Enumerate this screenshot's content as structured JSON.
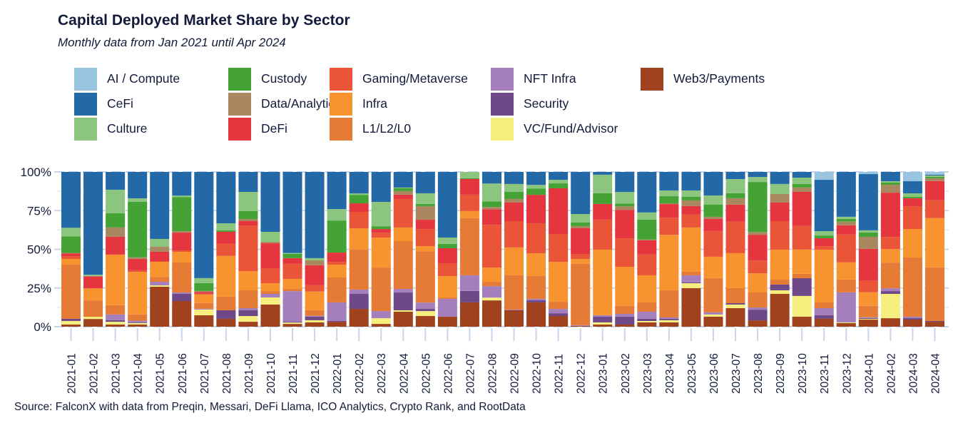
{
  "chart_data": {
    "type": "bar",
    "stacked": true,
    "normalized": true,
    "title": "Capital Deployed Market Share by Sector",
    "subtitle": "Monthly data from Jan 2021 until Apr 2024",
    "xlabel": "",
    "ylabel": "",
    "ylim": [
      0,
      100
    ],
    "yticks": [
      "0%",
      "25%",
      "50%",
      "75%",
      "100%"
    ],
    "ytick_values": [
      0,
      25,
      50,
      75,
      100
    ],
    "grid": true,
    "legend_position": "top",
    "source": "Source: FalconX with data from Preqin, Messari, DeFi Llama, ICO Analytics, Crypto Rank, and RootData",
    "categories": [
      "2021-01",
      "2021-02",
      "2021-03",
      "2021-04",
      "2021-05",
      "2021-06",
      "2021-07",
      "2021-08",
      "2021-09",
      "2021-10",
      "2021-11",
      "2021-12",
      "2022-01",
      "2022-02",
      "2022-03",
      "2022-04",
      "2022-05",
      "2022-06",
      "2022-07",
      "2022-08",
      "2022-09",
      "2022-10",
      "2022-11",
      "2022-12",
      "2023-01",
      "2023-02",
      "2023-03",
      "2023-04",
      "2023-05",
      "2023-06",
      "2023-07",
      "2023-08",
      "2023-09",
      "2023-10",
      "2023-11",
      "2023-12",
      "2024-01",
      "2024-02",
      "2024-03",
      "2024-04"
    ],
    "legend": [
      {
        "name": "AI / Compute",
        "color": "#9ac5e0"
      },
      {
        "name": "CeFi",
        "color": "#2369a8"
      },
      {
        "name": "Culture",
        "color": "#8bc57e"
      },
      {
        "name": "Custody",
        "color": "#45a336"
      },
      {
        "name": "Data/Analytics",
        "color": "#a98860"
      },
      {
        "name": "DeFi",
        "color": "#e5353e"
      },
      {
        "name": "Gaming/Metaverse",
        "color": "#e95536"
      },
      {
        "name": "Infra",
        "color": "#f89430"
      },
      {
        "name": "L1/L2/L0",
        "color": "#e67b35"
      },
      {
        "name": "NFT Infra",
        "color": "#a47fbb"
      },
      {
        "name": "Security",
        "color": "#6e4887"
      },
      {
        "name": "VC/Fund/Advisor",
        "color": "#f6ef7e"
      },
      {
        "name": "Web3/Payments",
        "color": "#a0421e"
      }
    ],
    "series": [
      {
        "name": "Web3/Payments",
        "color": "#a0421e",
        "values": [
          1.4,
          5.0,
          1.4,
          1.4,
          25.8,
          16.6,
          7.4,
          5.1,
          3.2,
          14.3,
          1.8,
          2.8,
          3.2,
          11.5,
          1.8,
          9.7,
          6.9,
          6.5,
          15.7,
          17.0,
          10.6,
          15.7,
          6.9,
          0.5,
          1.4,
          1.4,
          2.8,
          2.8,
          24.9,
          6.5,
          12.0,
          4.1,
          21.2,
          6.5,
          5.1,
          2.3,
          4.6,
          5.5,
          4.6,
          3.2
        ]
      },
      {
        "name": "VC/Fund/Advisor",
        "color": "#f6ef7e",
        "values": [
          2.3,
          1.4,
          1.8,
          1.0,
          0.9,
          0,
          3.7,
          0,
          3.7,
          4.6,
          0.9,
          1.4,
          0,
          0,
          3.7,
          0.9,
          3.2,
          0,
          0,
          1.8,
          0,
          0,
          0,
          0,
          1.4,
          0,
          0.9,
          1.4,
          3.2,
          1.4,
          2.3,
          0,
          2.3,
          13.4,
          0,
          0.5,
          0.5,
          15.7,
          0,
          0
        ]
      },
      {
        "name": "Security",
        "color": "#6e4887",
        "values": [
          1.4,
          0,
          1.0,
          0.5,
          0,
          4.6,
          0,
          5.5,
          3.7,
          0,
          0.5,
          2.3,
          0.5,
          9.7,
          0,
          11.5,
          1.4,
          0,
          7.4,
          0,
          0,
          1.4,
          1.8,
          0,
          3.7,
          5.1,
          1.4,
          0.9,
          0.5,
          0,
          0.9,
          6.9,
          3.7,
          11.5,
          2.3,
          0,
          0.5,
          1.8,
          0.9,
          0.5
        ]
      },
      {
        "name": "NFT Infra",
        "color": "#a47fbb",
        "values": [
          0,
          0,
          3.7,
          1.0,
          2.3,
          0.9,
          0.5,
          0,
          1.4,
          2.3,
          19.8,
          0.5,
          12.0,
          2.8,
          4.6,
          2.3,
          4.1,
          11.5,
          10.1,
          7.4,
          0.5,
          0.9,
          2.8,
          0.5,
          0.9,
          1.8,
          4.6,
          0.9,
          4.6,
          1.4,
          0,
          1.4,
          0,
          0,
          4.6,
          19.4,
          0.5,
          1.8,
          0.9,
          0
        ]
      },
      {
        "name": "L1/L2/L0",
        "color": "#e67b35",
        "values": [
          35.0,
          10.6,
          6.0,
          4.1,
          3.2,
          19.4,
          3.7,
          8.8,
          11.5,
          1.8,
          1.4,
          3.7,
          16.1,
          25.8,
          28.1,
          30.9,
          33.2,
          0.9,
          36.9,
          2.8,
          22.1,
          14.7,
          4.6,
          39.6,
          0,
          5.1,
          6.0,
          17.5,
          2.3,
          22.1,
          9.7,
          9.7,
          3.2,
          2.8,
          3.7,
          8.3,
          7.4,
          16.6,
          38.2,
          34.6
        ]
      },
      {
        "name": "Infra",
        "color": "#f89430",
        "values": [
          3.7,
          7.8,
          32.7,
          27.6,
          9.7,
          6.9,
          5.5,
          26.3,
          12.4,
          5.1,
          6.5,
          12.0,
          8.3,
          13.8,
          19.4,
          8.8,
          3.2,
          13.8,
          4.6,
          9.2,
          18.0,
          14.7,
          25.8,
          3.2,
          42.4,
          25.3,
          17.5,
          35.9,
          28.6,
          13.8,
          22.6,
          12.4,
          19.4,
          15.7,
          34.1,
          11.1,
          8.8,
          8.8,
          18.4,
          31.8
        ]
      },
      {
        "name": "Gaming/Metaverse",
        "color": "#e95536",
        "values": [
          1.8,
          0,
          0,
          1.0,
          0.5,
          0.9,
          0.5,
          7.8,
          29.5,
          9.7,
          9.7,
          4.1,
          1.8,
          10.6,
          3.2,
          18.4,
          11.1,
          8.3,
          10.6,
          27.6,
          17.0,
          19.4,
          18.0,
          3.2,
          19.4,
          18.4,
          13.4,
          11.1,
          8.3,
          16.6,
          20.3,
          8.3,
          18.4,
          15.2,
          2.3,
          18.0,
          7.4,
          7.8,
          14.7,
          11.5
        ]
      },
      {
        "name": "DeFi",
        "color": "#e5353e",
        "values": [
          1.8,
          7.8,
          11.5,
          7.4,
          6.0,
          11.5,
          1.2,
          7.8,
          2.8,
          16.1,
          3.7,
          12.9,
          6.0,
          5.5,
          2.3,
          2.8,
          6.0,
          9.7,
          10.1,
          10.1,
          12.0,
          18.4,
          29.5,
          16.6,
          10.1,
          18.4,
          9.2,
          8.8,
          5.5,
          7.8,
          11.1,
          16.6,
          12.0,
          22.1,
          5.1,
          6.0,
          20.7,
          28.6,
          5.1,
          12.4
        ]
      },
      {
        "name": "Data/Analytics",
        "color": "#a98860",
        "values": [
          0.3,
          0,
          6.0,
          1.0,
          3.2,
          0.9,
          0.6,
          0,
          1.4,
          0.9,
          0,
          3.2,
          0,
          0,
          0,
          2.3,
          8.8,
          0,
          0,
          1.4,
          2.3,
          0,
          0,
          1.4,
          0,
          2.3,
          0.5,
          0.5,
          3.7,
          1.4,
          4.1,
          1.8,
          5.5,
          2.8,
          0,
          2.3,
          7.8,
          5.1,
          0,
          1.8
        ]
      },
      {
        "name": "Custody",
        "color": "#45a336",
        "values": [
          10.7,
          0,
          9.2,
          36.0,
          0,
          22.1,
          5.1,
          0.9,
          5.1,
          0,
          2.8,
          0,
          20.7,
          5.5,
          1.8,
          1.8,
          1.4,
          2.8,
          0.5,
          3.7,
          4.6,
          4.1,
          3.2,
          2.3,
          6.9,
          1.8,
          12.9,
          4.6,
          2.3,
          7.8,
          3.2,
          32.3,
          0,
          2.3,
          1.8,
          1.8,
          2.8,
          1.4,
          0.9,
          0.9
        ]
      },
      {
        "name": "Culture",
        "color": "#8bc57e",
        "values": [
          5.5,
          1.0,
          15.2,
          2.3,
          5.1,
          0.9,
          3.2,
          4.6,
          12.4,
          6.5,
          0.5,
          1.4,
          7.4,
          0.9,
          15.7,
          0.5,
          6.9,
          4.1,
          4.1,
          11.5,
          5.1,
          2.3,
          2.3,
          5.5,
          12.0,
          7.4,
          4.6,
          3.7,
          4.1,
          6.0,
          9.2,
          3.2,
          6.5,
          4.1,
          2.8,
          1.4,
          1.4,
          0.9,
          2.3,
          0.9
        ]
      },
      {
        "name": "CeFi",
        "color": "#2369a8",
        "values": [
          36.1,
          66.4,
          11.5,
          17.1,
          43.3,
          15.3,
          68.6,
          33.2,
          12.9,
          38.7,
          52.4,
          55.7,
          24.0,
          13.9,
          19.4,
          10.1,
          13.8,
          42.4,
          0,
          7.5,
          7.8,
          8.4,
          5.1,
          27.2,
          1.8,
          13.0,
          26.2,
          12.0,
          12.0,
          15.2,
          4.6,
          3.3,
          7.8,
          3.7,
          33.2,
          29.0,
          36.4,
          6.0,
          7.8,
          0.5
        ]
      },
      {
        "name": "AI / Compute",
        "color": "#9ac5e0",
        "values": [
          0,
          0,
          0,
          0,
          0,
          0,
          0,
          0,
          0,
          0,
          0,
          0,
          0,
          0,
          0,
          0,
          0,
          0,
          0,
          0,
          0,
          0,
          0,
          0,
          0,
          0,
          0,
          0,
          0,
          0,
          0,
          0,
          0,
          0,
          5.1,
          0,
          1.4,
          0,
          6.0,
          1.8
        ]
      }
    ]
  }
}
